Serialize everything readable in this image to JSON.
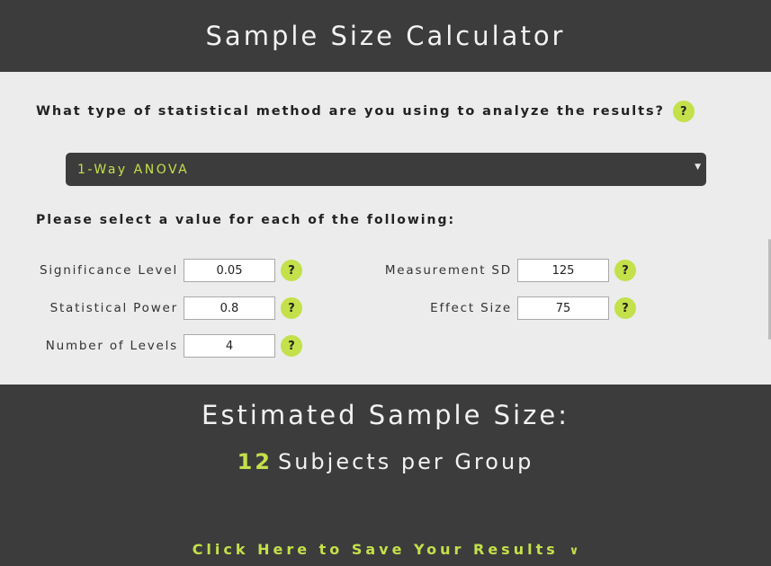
{
  "header": {
    "title": "Sample Size Calculator"
  },
  "form": {
    "question": "What type of statistical method are you using to analyze the results?",
    "help_glyph": "?",
    "method": {
      "selected": "1-Way ANOVA",
      "caret": "▼"
    },
    "instruction": "Please select a value for each of the following:",
    "fields": {
      "significance_level": {
        "label": "Significance Level",
        "value": "0.05"
      },
      "statistical_power": {
        "label": "Statistical Power",
        "value": "0.8"
      },
      "number_of_levels": {
        "label": "Number of Levels",
        "value": "4"
      },
      "measurement_sd": {
        "label": "Measurement SD",
        "value": "125"
      },
      "effect_size": {
        "label": "Effect Size",
        "value": "75"
      }
    }
  },
  "results": {
    "title": "Estimated Sample Size:",
    "count": "12",
    "unit": "Subjects per Group",
    "save_label": "Click Here to Save Your Results",
    "save_chevron": "∨"
  },
  "colors": {
    "dark": "#3c3c3c",
    "accent": "#c4e04a",
    "panel": "#ececec"
  }
}
